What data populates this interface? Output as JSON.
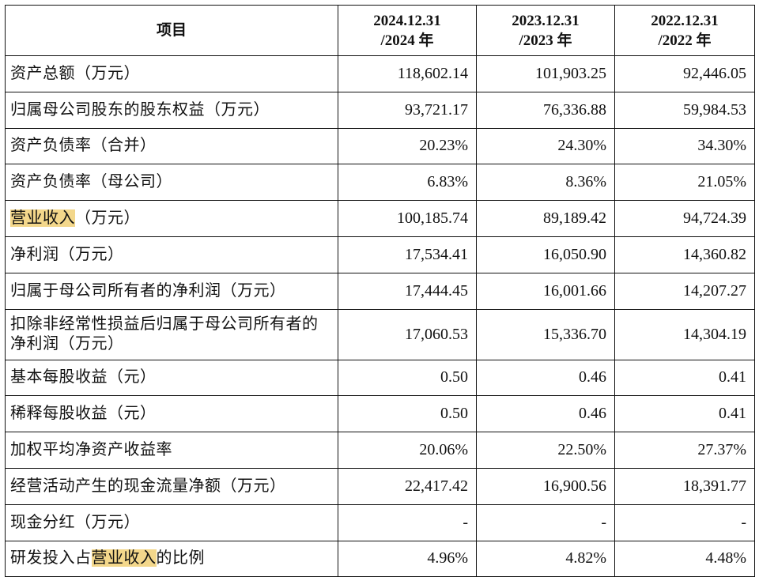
{
  "colors": {
    "highlight": "#f3d78b",
    "border": "#111111"
  },
  "header": {
    "item": "项目",
    "years": [
      {
        "date": "2024.12.31",
        "year": "/2024 年"
      },
      {
        "date": "2023.12.31",
        "year": "/2023 年"
      },
      {
        "date": "2022.12.31",
        "year": "/2022 年"
      }
    ]
  },
  "rows": [
    {
      "label": "资产总额（万元）",
      "values": [
        "118,602.14",
        "101,903.25",
        "92,446.05"
      ]
    },
    {
      "label": "归属母公司股东的股东权益（万元）",
      "values": [
        "93,721.17",
        "76,336.88",
        "59,984.53"
      ]
    },
    {
      "label": "资产负债率（合并）",
      "values": [
        "20.23%",
        "24.30%",
        "34.30%"
      ]
    },
    {
      "label": "资产负债率（母公司）",
      "values": [
        "6.83%",
        "8.36%",
        "21.05%"
      ]
    },
    {
      "label_hl": "营业收入",
      "label_rest": "（万元）",
      "values": [
        "100,185.74",
        "89,189.42",
        "94,724.39"
      ]
    },
    {
      "label": "净利润（万元）",
      "values": [
        "17,534.41",
        "16,050.90",
        "14,360.82"
      ]
    },
    {
      "label": "归属于母公司所有者的净利润（万元）",
      "values": [
        "17,444.45",
        "16,001.66",
        "14,207.27"
      ]
    },
    {
      "label": "扣除非经常性损益后归属于母公司所有者的净利润（万元）",
      "values": [
        "17,060.53",
        "15,336.70",
        "14,304.19"
      ]
    },
    {
      "label": "基本每股收益（元）",
      "values": [
        "0.50",
        "0.46",
        "0.41"
      ]
    },
    {
      "label": "稀释每股收益（元）",
      "values": [
        "0.50",
        "0.46",
        "0.41"
      ]
    },
    {
      "label": "加权平均净资产收益率",
      "values": [
        "20.06%",
        "22.50%",
        "27.37%"
      ]
    },
    {
      "label": "经营活动产生的现金流量净额（万元）",
      "values": [
        "22,417.42",
        "16,900.56",
        "18,391.77"
      ]
    },
    {
      "label": "现金分红（万元）",
      "values": [
        "-",
        "-",
        "-"
      ]
    },
    {
      "label_pre": "研发投入占",
      "label_hl": "营业收入",
      "label_post": "的比例",
      "values": [
        "4.96%",
        "4.82%",
        "4.48%"
      ]
    }
  ]
}
